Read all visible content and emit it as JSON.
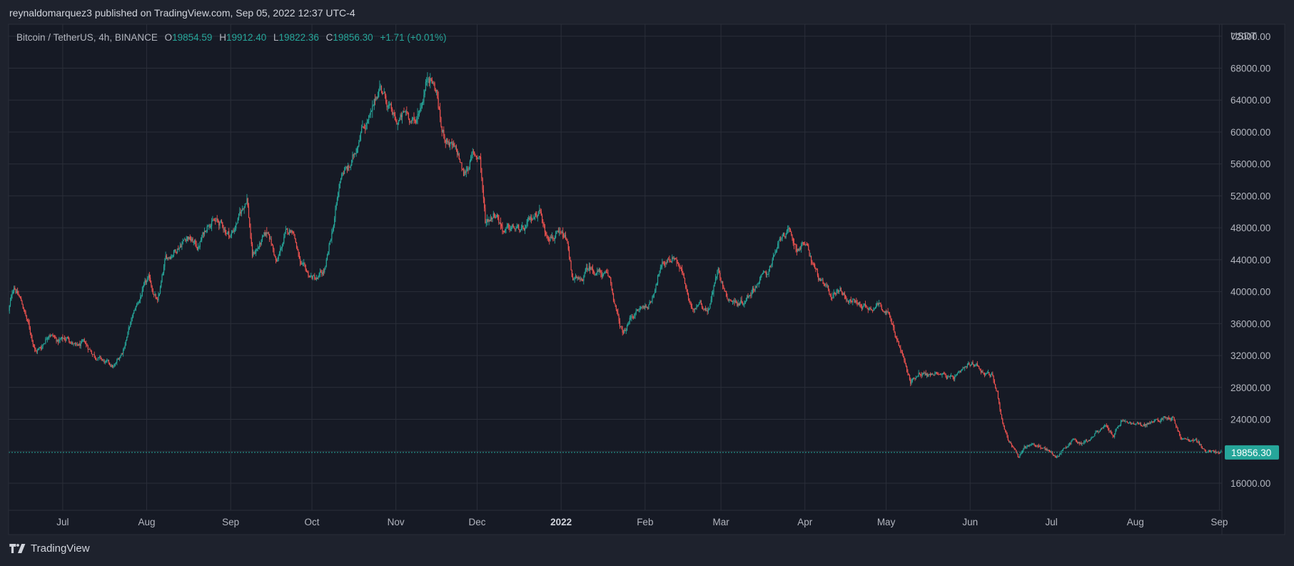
{
  "header": {
    "publisher_line": "reynaldomarquez3 published on TradingView.com, Sep 05, 2022 12:37 UTC-4"
  },
  "legend": {
    "symbol": "Bitcoin / TetherUS, 4h, BINANCE",
    "o_label": "O",
    "o_value": "19854.59",
    "h_label": "H",
    "h_value": "19912.40",
    "l_label": "L",
    "l_value": "19822.36",
    "c_label": "C",
    "c_value": "19856.30",
    "change": "+1.71 (+0.01%)"
  },
  "footer": {
    "brand": "TradingView"
  },
  "colors": {
    "background": "#1e222d",
    "plot_background": "#161a25",
    "grid": "#2a2e39",
    "up": "#26a69a",
    "down": "#ef5350",
    "text": "#b2b5be"
  },
  "chart_data": {
    "type": "candlestick",
    "title": "Bitcoin / TetherUS, 4h, BINANCE",
    "interval": "4h",
    "currency": "USDT",
    "ylim": [
      12600,
      73500
    ],
    "yticks": [
      16000,
      20000,
      24000,
      28000,
      32000,
      36000,
      40000,
      44000,
      48000,
      52000,
      56000,
      60000,
      64000,
      68000,
      72000
    ],
    "ytick_labels": [
      "16000.00",
      "20000.00",
      "24000.00",
      "28000.00",
      "32000.00",
      "36000.00",
      "40000.00",
      "44000.00",
      "48000.00",
      "52000.00",
      "56000.00",
      "60000.00",
      "64000.00",
      "68000.00",
      "72000.00"
    ],
    "date_range": [
      "2021-06-11",
      "2022-09-05"
    ],
    "xticks": [
      {
        "label": "Jul",
        "day": 20,
        "bold": false
      },
      {
        "label": "Aug",
        "day": 51,
        "bold": false
      },
      {
        "label": "Sep",
        "day": 82,
        "bold": false
      },
      {
        "label": "Oct",
        "day": 112,
        "bold": false
      },
      {
        "label": "Nov",
        "day": 143,
        "bold": false
      },
      {
        "label": "Dec",
        "day": 173,
        "bold": false
      },
      {
        "label": "2022",
        "day": 204,
        "bold": true
      },
      {
        "label": "Feb",
        "day": 235,
        "bold": false
      },
      {
        "label": "Mar",
        "day": 263,
        "bold": false
      },
      {
        "label": "Apr",
        "day": 294,
        "bold": false
      },
      {
        "label": "May",
        "day": 324,
        "bold": false
      },
      {
        "label": "Jun",
        "day": 355,
        "bold": false
      },
      {
        "label": "Jul",
        "day": 385,
        "bold": false
      },
      {
        "label": "Aug",
        "day": 416,
        "bold": false
      },
      {
        "label": "Sep",
        "day": 447,
        "bold": false
      }
    ],
    "price_path": [
      [
        0,
        37500
      ],
      [
        2,
        40800
      ],
      [
        5,
        38500
      ],
      [
        8,
        35000
      ],
      [
        10,
        32500
      ],
      [
        12,
        33000
      ],
      [
        15,
        35000
      ],
      [
        18,
        33800
      ],
      [
        22,
        34200
      ],
      [
        25,
        33000
      ],
      [
        28,
        33500
      ],
      [
        32,
        32000
      ],
      [
        36,
        31000
      ],
      [
        39,
        30500
      ],
      [
        42,
        32500
      ],
      [
        45,
        36000
      ],
      [
        47,
        38000
      ],
      [
        50,
        40500
      ],
      [
        52,
        41500
      ],
      [
        55,
        38500
      ],
      [
        58,
        44000
      ],
      [
        62,
        45500
      ],
      [
        66,
        47000
      ],
      [
        70,
        45500
      ],
      [
        74,
        49000
      ],
      [
        78,
        48500
      ],
      [
        82,
        47000
      ],
      [
        86,
        50000
      ],
      [
        88,
        52000
      ],
      [
        90,
        44500
      ],
      [
        93,
        46000
      ],
      [
        96,
        47500
      ],
      [
        99,
        43500
      ],
      [
        102,
        47000
      ],
      [
        105,
        48000
      ],
      [
        108,
        43000
      ],
      [
        111,
        42000
      ],
      [
        114,
        41500
      ],
      [
        117,
        42800
      ],
      [
        120,
        48500
      ],
      [
        123,
        55000
      ],
      [
        126,
        55500
      ],
      [
        128,
        57500
      ],
      [
        130,
        60500
      ],
      [
        134,
        62000
      ],
      [
        137,
        66000
      ],
      [
        140,
        63500
      ],
      [
        143,
        61000
      ],
      [
        147,
        62500
      ],
      [
        150,
        61000
      ],
      [
        153,
        64500
      ],
      [
        155,
        67500
      ],
      [
        158,
        65000
      ],
      [
        160,
        60000
      ],
      [
        163,
        58500
      ],
      [
        166,
        57000
      ],
      [
        168,
        54500
      ],
      [
        171,
        57000
      ],
      [
        174,
        57000
      ],
      [
        176,
        48800
      ],
      [
        180,
        50000
      ],
      [
        183,
        47500
      ],
      [
        186,
        48000
      ],
      [
        190,
        47500
      ],
      [
        194,
        49500
      ],
      [
        196,
        50500
      ],
      [
        198,
        47500
      ],
      [
        202,
        47000
      ],
      [
        206,
        46500
      ],
      [
        208,
        42000
      ],
      [
        211,
        41000
      ],
      [
        214,
        43000
      ],
      [
        218,
        42500
      ],
      [
        222,
        41500
      ],
      [
        225,
        36500
      ],
      [
        227,
        34500
      ],
      [
        230,
        37000
      ],
      [
        234,
        38000
      ],
      [
        237,
        38500
      ],
      [
        240,
        42500
      ],
      [
        243,
        44000
      ],
      [
        246,
        44500
      ],
      [
        249,
        42000
      ],
      [
        252,
        37500
      ],
      [
        255,
        39000
      ],
      [
        258,
        37500
      ],
      [
        260,
        40000
      ],
      [
        262,
        43000
      ],
      [
        265,
        39500
      ],
      [
        269,
        38500
      ],
      [
        272,
        39000
      ],
      [
        276,
        41000
      ],
      [
        280,
        42500
      ],
      [
        283,
        44500
      ],
      [
        286,
        47500
      ],
      [
        288,
        47200
      ],
      [
        291,
        45500
      ],
      [
        294,
        46000
      ],
      [
        297,
        43500
      ],
      [
        300,
        41000
      ],
      [
        304,
        39500
      ],
      [
        307,
        40500
      ],
      [
        310,
        39000
      ],
      [
        314,
        38500
      ],
      [
        318,
        38000
      ],
      [
        321,
        38500
      ],
      [
        324,
        37800
      ],
      [
        327,
        35000
      ],
      [
        330,
        32000
      ],
      [
        333,
        28500
      ],
      [
        336,
        30000
      ],
      [
        340,
        29500
      ],
      [
        344,
        30000
      ],
      [
        348,
        29000
      ],
      [
        351,
        29500
      ],
      [
        354,
        30500
      ],
      [
        357,
        31000
      ],
      [
        360,
        30000
      ],
      [
        363,
        29500
      ],
      [
        365,
        27500
      ],
      [
        367,
        23500
      ],
      [
        369,
        21500
      ],
      [
        371,
        20500
      ],
      [
        373,
        19000
      ],
      [
        375,
        20500
      ],
      [
        378,
        21000
      ],
      [
        381,
        20500
      ],
      [
        384,
        20000
      ],
      [
        387,
        19300
      ],
      [
        390,
        20500
      ],
      [
        393,
        21500
      ],
      [
        396,
        21000
      ],
      [
        399,
        21500
      ],
      [
        402,
        22500
      ],
      [
        405,
        23000
      ],
      [
        408,
        22000
      ],
      [
        411,
        23800
      ],
      [
        414,
        23500
      ],
      [
        418,
        23200
      ],
      [
        421,
        23500
      ],
      [
        424,
        23800
      ],
      [
        427,
        24300
      ],
      [
        430,
        24200
      ],
      [
        433,
        21500
      ],
      [
        436,
        21400
      ],
      [
        439,
        21200
      ],
      [
        442,
        20000
      ],
      [
        445,
        19900
      ],
      [
        448,
        19856.3
      ]
    ],
    "last_price": "19856.30",
    "last_price_value": 19856.3
  }
}
